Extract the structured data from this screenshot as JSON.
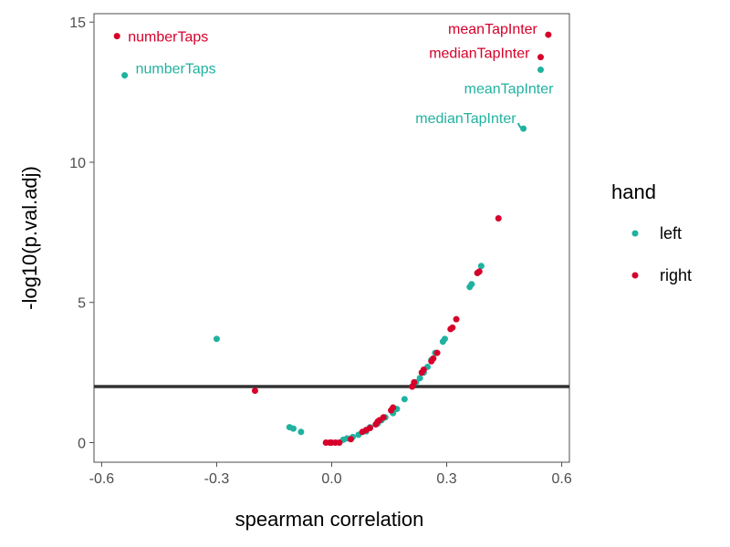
{
  "chart_data": {
    "type": "scatter",
    "title": "",
    "xlabel": "spearman correlation",
    "ylabel": "-log10(p.val.adj)",
    "xlim": [
      -0.62,
      0.62
    ],
    "ylim": [
      -0.7,
      15.3
    ],
    "xticks": [
      -0.6,
      -0.3,
      0.0,
      0.3,
      0.6
    ],
    "xtick_labels": [
      "-0.6",
      "-0.3",
      "0.0",
      "0.3",
      "0.6"
    ],
    "yticks": [
      0,
      5,
      10,
      15
    ],
    "ytick_labels": [
      "0",
      "5",
      "10",
      "15"
    ],
    "grid": false,
    "hline": 2,
    "legend": {
      "title": "hand",
      "position": "right",
      "entries": [
        {
          "label": "left",
          "color": "#20B2A0"
        },
        {
          "label": "right",
          "color": "#D6002A"
        }
      ]
    },
    "series": [
      {
        "name": "left",
        "color": "#20B2A0",
        "points": [
          [
            -0.54,
            13.1
          ],
          [
            0.5,
            11.2
          ],
          [
            0.545,
            13.3
          ],
          [
            -0.3,
            3.7
          ],
          [
            -0.11,
            0.55
          ],
          [
            -0.1,
            0.5
          ],
          [
            -0.08,
            0.38
          ],
          [
            0.03,
            0.1
          ],
          [
            0.04,
            0.15
          ],
          [
            0.055,
            0.2
          ],
          [
            0.07,
            0.28
          ],
          [
            0.09,
            0.4
          ],
          [
            0.1,
            0.55
          ],
          [
            0.12,
            0.68
          ],
          [
            0.13,
            0.8
          ],
          [
            0.14,
            0.9
          ],
          [
            0.16,
            1.05
          ],
          [
            0.17,
            1.2
          ],
          [
            0.19,
            1.55
          ],
          [
            0.21,
            2.0
          ],
          [
            0.22,
            2.15
          ],
          [
            0.23,
            2.3
          ],
          [
            0.24,
            2.5
          ],
          [
            0.25,
            2.7
          ],
          [
            0.26,
            2.95
          ],
          [
            0.27,
            3.2
          ],
          [
            0.29,
            3.6
          ],
          [
            0.295,
            3.7
          ],
          [
            0.36,
            5.55
          ],
          [
            0.365,
            5.65
          ],
          [
            0.38,
            6.05
          ],
          [
            0.39,
            6.3
          ]
        ]
      },
      {
        "name": "right",
        "color": "#D6002A",
        "points": [
          [
            -0.56,
            14.5
          ],
          [
            0.565,
            14.55
          ],
          [
            0.545,
            13.75
          ],
          [
            0.435,
            8.0
          ],
          [
            -0.2,
            1.85
          ],
          [
            -0.015,
            0.0
          ],
          [
            -0.005,
            0.0
          ],
          [
            0.0,
            0.0
          ],
          [
            0.01,
            0.0
          ],
          [
            0.02,
            0.0
          ],
          [
            0.05,
            0.12
          ],
          [
            0.08,
            0.38
          ],
          [
            0.09,
            0.45
          ],
          [
            0.1,
            0.52
          ],
          [
            0.115,
            0.65
          ],
          [
            0.12,
            0.75
          ],
          [
            0.125,
            0.8
          ],
          [
            0.135,
            0.9
          ],
          [
            0.155,
            1.15
          ],
          [
            0.16,
            1.25
          ],
          [
            0.21,
            2.0
          ],
          [
            0.215,
            2.15
          ],
          [
            0.235,
            2.5
          ],
          [
            0.24,
            2.6
          ],
          [
            0.26,
            2.9
          ],
          [
            0.265,
            3.0
          ],
          [
            0.275,
            3.2
          ],
          [
            0.31,
            4.05
          ],
          [
            0.315,
            4.1
          ],
          [
            0.325,
            4.4
          ],
          [
            0.38,
            6.05
          ],
          [
            0.385,
            6.1
          ]
        ]
      }
    ],
    "annotations": [
      {
        "text": "numberTaps",
        "x": -0.56,
        "y": 14.5,
        "series": "right",
        "anchor": "start"
      },
      {
        "text": "numberTaps",
        "x": -0.54,
        "y": 13.1,
        "series": "left",
        "anchor": "start"
      },
      {
        "text": "meanTapInter",
        "x": 0.565,
        "y": 14.55,
        "series": "right",
        "anchor": "end"
      },
      {
        "text": "medianTapInter",
        "x": 0.545,
        "y": 13.75,
        "series": "right",
        "anchor": "end"
      },
      {
        "text": "meanTapInter",
        "x": 0.545,
        "y": 13.3,
        "series": "left",
        "anchor": "end"
      },
      {
        "text": "medianTapInter",
        "x": 0.5,
        "y": 11.2,
        "series": "left",
        "anchor": "end"
      }
    ]
  }
}
